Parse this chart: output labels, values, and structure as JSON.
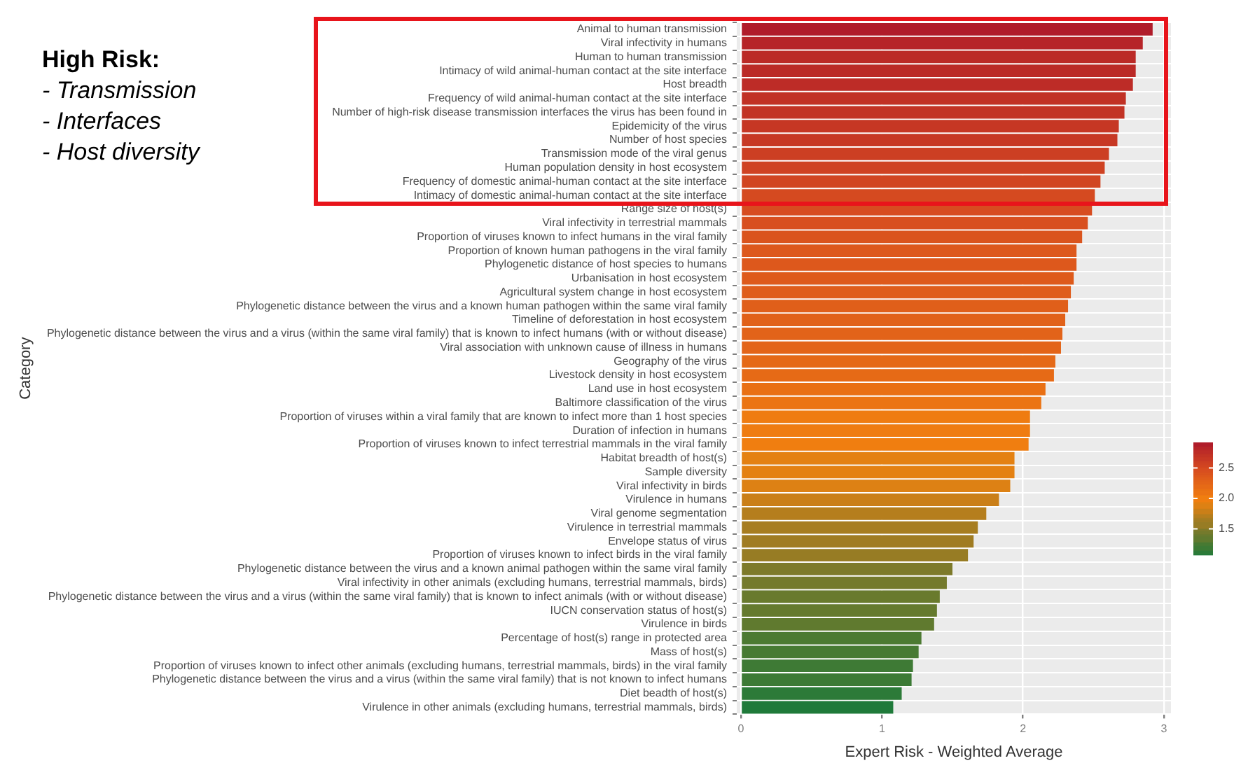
{
  "chart_data": {
    "type": "bar",
    "orientation": "horizontal",
    "xlabel": "Expert Risk - Weighted Average",
    "ylabel": "Category",
    "annotations": [
      "High Risk:",
      "- Transmission",
      "- Interfaces",
      "- Host diversity"
    ],
    "categories": [
      "Animal to human transmission",
      "Viral infectivity in humans",
      "Human to human transmission",
      "Intimacy of wild animal-human contact at the site interface",
      "Host breadth",
      "Frequency of wild animal-human contact at the site interface",
      "Number of high-risk disease transmission interfaces the virus has been found in",
      "Epidemicity of the virus",
      "Number of host species",
      "Transmission mode of the viral genus",
      "Human population density in host ecosystem",
      "Frequency of domestic animal-human contact at the site interface",
      "Intimacy of domestic animal-human contact at the site interface",
      "Range size of host(s)",
      "Viral infectivity in terrestrial mammals",
      "Proportion of viruses known to infect humans in the viral family",
      "Proportion of known human pathogens in the viral family",
      "Phylogenetic distance of host species to humans",
      "Urbanisation in host ecosystem",
      "Agricultural system change in host ecosystem",
      "Phylogenetic distance between the virus and a known human pathogen within the same viral family",
      "Timeline of deforestation in host ecosystem",
      "Phylogenetic distance between the virus and a virus (within the same viral family) that is known to infect humans (with or without disease)",
      "Viral association with unknown cause of illness in humans",
      "Geography of the virus",
      "Livestock density in host ecosystem",
      "Land use in host ecosystem",
      "Baltimore classification of the virus",
      "Proportion of viruses within a viral family that are known to infect more than 1 host species",
      "Duration of infection in humans",
      "Proportion of viruses known to infect terrestrial mammals in the viral family",
      "Habitat breadth of host(s)",
      "Sample diversity",
      "Viral infectivity in birds",
      "Virulence in humans",
      "Viral genome segmentation",
      "Virulence in terrestrial mammals",
      "Envelope status of virus",
      "Proportion of viruses known to infect birds in the viral family",
      "Phylogenetic distance between the virus and a known animal pathogen within the same viral family",
      "Viral infectivity in other animals (excluding humans, terrestrial mammals, birds)",
      "Phylogenetic distance between the virus and a virus (within the same viral family) that is known to infect animals (with or without disease)",
      "IUCN conservation status of host(s)",
      "Virulence in birds",
      "Percentage of host(s) range in protected area",
      "Mass of host(s)",
      "Proportion of viruses known to infect other animals (excluding humans, terrestrial mammals, birds) in the viral family",
      "Phylogenetic distance between the virus and a virus (within the same viral family) that is not known to infect humans",
      "Diet beadth of host(s)",
      "Virulence in other animals (excluding humans, terrestrial mammals, birds)"
    ],
    "values": [
      2.92,
      2.85,
      2.8,
      2.8,
      2.78,
      2.73,
      2.72,
      2.68,
      2.67,
      2.61,
      2.58,
      2.55,
      2.51,
      2.49,
      2.46,
      2.42,
      2.38,
      2.38,
      2.36,
      2.34,
      2.32,
      2.3,
      2.28,
      2.27,
      2.23,
      2.22,
      2.16,
      2.13,
      2.05,
      2.05,
      2.04,
      1.94,
      1.94,
      1.91,
      1.83,
      1.74,
      1.68,
      1.65,
      1.61,
      1.5,
      1.46,
      1.41,
      1.39,
      1.37,
      1.28,
      1.26,
      1.22,
      1.21,
      1.14,
      1.08
    ],
    "colors": [
      "#b01c2a",
      "#b62428",
      "#bb2a27",
      "#bb2a27",
      "#bd2c27",
      "#c13125",
      "#c23325",
      "#c63724",
      "#c73824",
      "#cc3f23",
      "#cf4222",
      "#d14521",
      "#d54a20",
      "#d74c20",
      "#d84f1f",
      "#da541d",
      "#dd581c",
      "#dd581c",
      "#de5a1b",
      "#df5d1b",
      "#e05f1a",
      "#e16119",
      "#e26319",
      "#e36418",
      "#e56917",
      "#e66a16",
      "#e97014",
      "#eb7413",
      "#ef7c11",
      "#ef7c11",
      "#f07e10",
      "#e48112",
      "#e48112",
      "#dd8114",
      "#ca7f18",
      "#b57e1d",
      "#a77d20",
      "#a07c22",
      "#977c24",
      "#7d7a2a",
      "#747a2c",
      "#697a2d",
      "#657a2e",
      "#607a2f",
      "#4c7a32",
      "#477a33",
      "#3e7a35",
      "#3c7a35",
      "#2c7a38",
      "#1f7a3a"
    ],
    "xlim": [
      -0.03,
      3.05
    ],
    "xticks": [
      0,
      1,
      2,
      3
    ],
    "grid": true,
    "clim": [
      1.08,
      2.92
    ],
    "cticks": [
      {
        "value": 1.5,
        "label": "1.5"
      },
      {
        "value": 2,
        "label": "2.0"
      },
      {
        "value": 2.5,
        "label": "2.5"
      }
    ]
  }
}
